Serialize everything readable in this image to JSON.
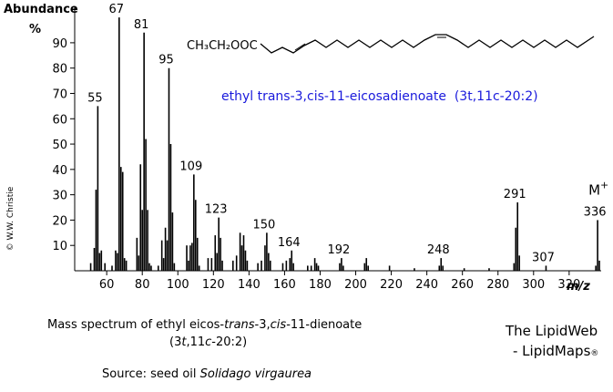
{
  "chart_data": {
    "type": "bar",
    "y_label": "Abundance",
    "y_unit": "%",
    "x_label": "m/z",
    "x": [
      51,
      53,
      54,
      55,
      56,
      57,
      59,
      63,
      65,
      66,
      67,
      68,
      69,
      70,
      71,
      77,
      78,
      79,
      80,
      81,
      82,
      83,
      84,
      85,
      89,
      91,
      92,
      93,
      94,
      95,
      96,
      97,
      98,
      105,
      106,
      107,
      108,
      109,
      110,
      111,
      112,
      117,
      119,
      121,
      122,
      123,
      124,
      125,
      131,
      133,
      135,
      136,
      137,
      138,
      139,
      145,
      147,
      149,
      150,
      151,
      152,
      159,
      161,
      163,
      164,
      165,
      173,
      175,
      177,
      178,
      179,
      191,
      192,
      193,
      205,
      206,
      207,
      219,
      233,
      247,
      248,
      249,
      261,
      275,
      289,
      290,
      291,
      292,
      307,
      335,
      336,
      337
    ],
    "values": [
      3,
      9,
      32,
      65,
      7,
      8,
      3,
      2,
      8,
      7,
      100,
      41,
      39,
      5,
      4,
      13,
      6,
      42,
      24,
      94,
      52,
      24,
      3,
      2,
      2,
      12,
      5,
      17,
      12,
      80,
      50,
      23,
      3,
      10,
      4,
      10,
      11,
      38,
      28,
      13,
      2,
      5,
      5,
      14,
      7,
      21,
      13,
      4,
      4,
      6,
      15,
      10,
      14,
      8,
      4,
      3,
      4,
      10,
      15,
      7,
      4,
      3,
      4,
      5,
      8,
      3,
      2,
      2,
      5,
      3,
      2,
      3,
      5,
      2,
      3,
      5,
      2,
      2,
      1,
      2,
      5,
      2,
      1,
      1,
      3,
      17,
      27,
      6,
      2,
      2,
      20,
      4
    ],
    "color": "#000000",
    "labeled_peaks": [
      55,
      67,
      81,
      95,
      109,
      123,
      150,
      164,
      192,
      248,
      291,
      307,
      336
    ],
    "molecular_ion": [
      "M",
      "+"
    ],
    "xlim": [
      42,
      338
    ],
    "xticks": [
      60,
      80,
      100,
      120,
      140,
      160,
      180,
      200,
      220,
      240,
      260,
      280,
      300,
      320
    ],
    "ylim": [
      0,
      104
    ],
    "yticks": [
      10,
      20,
      30,
      40,
      50,
      60,
      70,
      80,
      90
    ]
  },
  "structure_label": "CH₃CH₂OOC",
  "compound_name": "ethyl trans-3,cis-11-eicosadienoate  (3t,11c-20:2)",
  "caption": {
    "line1": [
      "Mass spectrum of ethyl eicos-",
      "trans",
      "-3,",
      "cis",
      "-11-dienoate"
    ],
    "line2": [
      "(3",
      "t",
      ",11",
      "c",
      "-20:2)"
    ]
  },
  "source": [
    "Source: seed oil ",
    "Solidago virgaurea"
  ],
  "brand": [
    "The LipidWeb",
    "- LipidMaps",
    "®"
  ],
  "copyright": "© W.W. Christie"
}
